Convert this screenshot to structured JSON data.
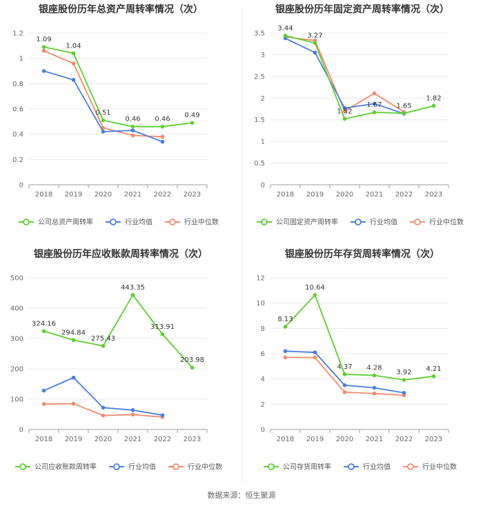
{
  "colors": {
    "company": "#5ccf2d",
    "avg": "#4a7de0",
    "median": "#f08a6c"
  },
  "source": "数据来源：恒生聚源",
  "chart_data": [
    {
      "type": "line",
      "title": "银座股份历年总资产周转率情况（次）",
      "categories": [
        "2018",
        "2019",
        "2020",
        "2021",
        "2022",
        "2023"
      ],
      "ylim": [
        0,
        1.2
      ],
      "yticks": [
        "0",
        "0.2",
        "0.4",
        "0.6",
        "0.8",
        "1",
        "1.2"
      ],
      "series": [
        {
          "name": "公司总资产周转率",
          "key": "company",
          "values": [
            1.09,
            1.04,
            0.51,
            0.46,
            0.46,
            0.49
          ],
          "labels": [
            "1.09",
            "1.04",
            "0.51",
            "0.46",
            "0.46",
            "0.49"
          ]
        },
        {
          "name": "行业均值",
          "key": "avg",
          "values": [
            0.9,
            0.83,
            0.42,
            0.43,
            0.34,
            null
          ]
        },
        {
          "name": "行业中位数",
          "key": "median",
          "values": [
            1.06,
            0.96,
            0.45,
            0.39,
            0.38,
            null
          ]
        }
      ]
    },
    {
      "type": "line",
      "title": "银座股份历年固定资产周转率情况（次）",
      "categories": [
        "2018",
        "2019",
        "2020",
        "2021",
        "2022",
        "2023"
      ],
      "ylim": [
        0,
        3.5
      ],
      "yticks": [
        "0",
        "0.5",
        "1",
        "1.5",
        "2",
        "2.5",
        "3",
        "3.5"
      ],
      "series": [
        {
          "name": "公司固定资产周转率",
          "key": "company",
          "values": [
            3.44,
            3.27,
            1.52,
            1.67,
            1.65,
            1.82
          ],
          "labels": [
            "3.44",
            "3.27",
            "1.52",
            "1.67",
            "1.65",
            "1.82"
          ]
        },
        {
          "name": "行业均值",
          "key": "avg",
          "values": [
            3.38,
            3.05,
            1.77,
            1.87,
            1.64,
            null
          ]
        },
        {
          "name": "行业中位数",
          "key": "median",
          "values": [
            3.41,
            3.33,
            1.7,
            2.11,
            1.68,
            null
          ]
        }
      ]
    },
    {
      "type": "line",
      "title": "银座股份历年应收账款周转率情况（次）",
      "categories": [
        "2018",
        "2019",
        "2020",
        "2021",
        "2022",
        "2023"
      ],
      "ylim": [
        0,
        500
      ],
      "yticks": [
        "0",
        "100",
        "200",
        "300",
        "400",
        "500"
      ],
      "series": [
        {
          "name": "公司应收账款周转率",
          "key": "company",
          "values": [
            324.16,
            294.84,
            275.43,
            443.35,
            313.91,
            203.98
          ],
          "labels": [
            "324.16",
            "294.84",
            "275.43",
            "443.35",
            "313.91",
            "203.98"
          ]
        },
        {
          "name": "行业均值",
          "key": "avg",
          "values": [
            128,
            171,
            72,
            64,
            47,
            null
          ]
        },
        {
          "name": "行业中位数",
          "key": "median",
          "values": [
            84,
            85,
            46,
            49,
            41,
            null
          ]
        }
      ]
    },
    {
      "type": "line",
      "title": "银座股份历年存货周转率情况（次）",
      "categories": [
        "2018",
        "2019",
        "2020",
        "2021",
        "2022",
        "2023"
      ],
      "ylim": [
        0,
        12
      ],
      "yticks": [
        "0",
        "2",
        "4",
        "6",
        "8",
        "10",
        "12"
      ],
      "series": [
        {
          "name": "公司存货周转率",
          "key": "company",
          "values": [
            8.13,
            10.64,
            4.37,
            4.28,
            3.92,
            4.21
          ],
          "labels": [
            "8.13",
            "10.64",
            "4.37",
            "4.28",
            "3.92",
            "4.21"
          ]
        },
        {
          "name": "行业均值",
          "key": "avg",
          "values": [
            6.2,
            6.1,
            3.5,
            3.3,
            2.9,
            null
          ]
        },
        {
          "name": "行业中位数",
          "key": "median",
          "values": [
            5.7,
            5.7,
            2.95,
            2.85,
            2.7,
            null
          ]
        }
      ]
    }
  ]
}
